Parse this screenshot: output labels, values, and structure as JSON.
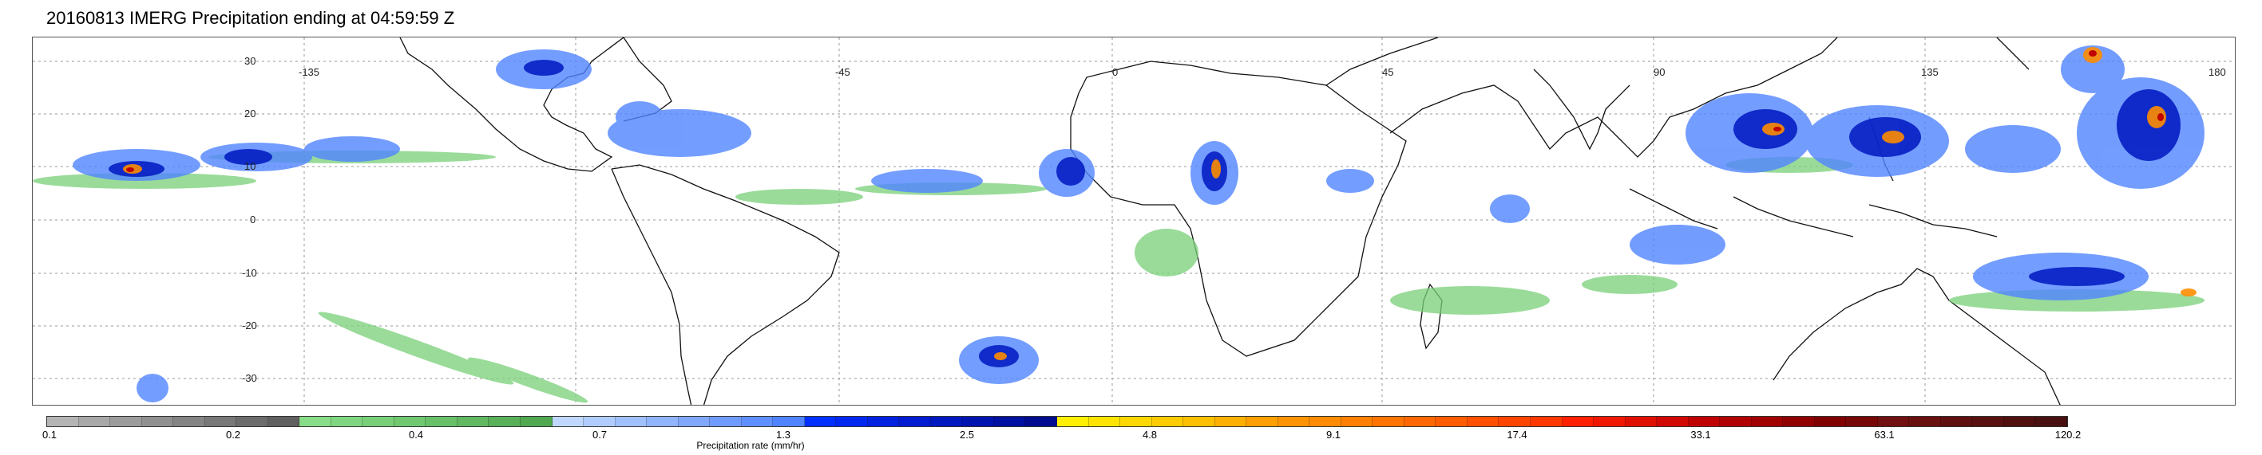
{
  "title": "20160813 IMERG Precipitation ending at 04:59:59 Z",
  "map": {
    "longitude_labels": [
      "-135",
      "-45",
      "0",
      "45",
      "90",
      "135",
      "180"
    ],
    "latitude_labels": [
      "30",
      "20",
      "10",
      "0",
      "-10",
      "-20",
      "-30"
    ]
  },
  "colorbar": {
    "label": "Precipitation rate (mm/hr)",
    "ticks": [
      "0.1",
      "0.2",
      "0.4",
      "0.7",
      "1.3",
      "2.5",
      "4.8",
      "9.1",
      "17.4",
      "33.1",
      "63.1",
      "120.2"
    ],
    "colors": [
      "#b4b4b4",
      "#a8a8a8",
      "#9c9c9c",
      "#909090",
      "#848484",
      "#787878",
      "#6c6c6c",
      "#606060",
      "#88dd88",
      "#80d680",
      "#78cf78",
      "#70c870",
      "#68c068",
      "#60b860",
      "#58b058",
      "#50a850",
      "#c0d8ff",
      "#b0ccff",
      "#a0c0ff",
      "#90b4ff",
      "#80a8ff",
      "#709cff",
      "#6090ff",
      "#5084ff",
      "#0030ff",
      "#0028f0",
      "#0022e0",
      "#001cd0",
      "#0018c0",
      "#0014b0",
      "#0010a0",
      "#000c90",
      "#fff000",
      "#ffe400",
      "#ffd800",
      "#ffcc00",
      "#ffc000",
      "#ffb000",
      "#ffa000",
      "#ff9400",
      "#ff8c00",
      "#ff8000",
      "#ff7400",
      "#ff6800",
      "#ff5c00",
      "#ff5000",
      "#ff4400",
      "#ff3800",
      "#ff2000",
      "#f01800",
      "#e01000",
      "#d00800",
      "#c00000",
      "#b00000",
      "#a00000",
      "#900000",
      "#800000",
      "#780808",
      "#701010",
      "#681010",
      "#601010",
      "#581010",
      "#501010",
      "#481010"
    ]
  }
}
